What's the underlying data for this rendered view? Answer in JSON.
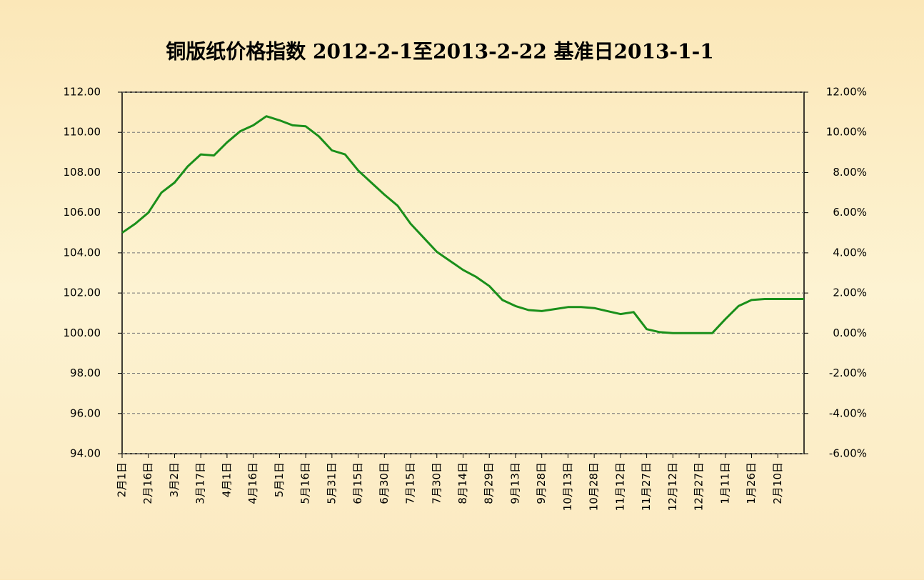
{
  "chart_data": {
    "type": "line",
    "title": "铜版纸价格指数 2012-2-1至2013-2-22 基准日2013-1-1",
    "categories": [
      "2月1日",
      null,
      "2月16日",
      null,
      "3月2日",
      null,
      "3月17日",
      null,
      "4月1日",
      null,
      "4月16日",
      null,
      "5月1日",
      null,
      "5月16日",
      null,
      "5月31日",
      null,
      "6月15日",
      null,
      "6月30日",
      null,
      "7月15日",
      null,
      "7月30日",
      null,
      "8月14日",
      null,
      "8月29日",
      null,
      "9月13日",
      null,
      "9月28日",
      null,
      "10月13日",
      null,
      "10月28日",
      null,
      "11月12日",
      null,
      "11月27日",
      null,
      "12月12日",
      null,
      "12月27日",
      null,
      "1月11日",
      null,
      "1月26日",
      null,
      "2月10日",
      null,
      null
    ],
    "series": [
      {
        "color": "#1a8f1a",
        "values": [
          105.0,
          105.45,
          106.0,
          107.0,
          107.5,
          108.3,
          108.9,
          108.85,
          109.5,
          110.05,
          110.35,
          110.8,
          110.6,
          110.35,
          110.3,
          109.8,
          109.1,
          108.9,
          108.1,
          107.5,
          106.9,
          106.35,
          105.45,
          104.75,
          104.05,
          103.6,
          103.15,
          102.8,
          102.35,
          101.65,
          101.35,
          101.15,
          101.1,
          101.2,
          101.3,
          101.3,
          101.25,
          101.1,
          100.95,
          101.05,
          100.2,
          100.05,
          100.0,
          100.0,
          100.0,
          100.0,
          100.7,
          101.35,
          101.65,
          101.7,
          101.7,
          101.7,
          101.7
        ]
      }
    ],
    "ylim": [
      94,
      112
    ],
    "yticks": [
      {
        "value": 94,
        "label": "94.00"
      },
      {
        "value": 96,
        "label": "96.00"
      },
      {
        "value": 98,
        "label": "98.00"
      },
      {
        "value": 100,
        "label": "100.00"
      },
      {
        "value": 102,
        "label": "102.00"
      },
      {
        "value": 104,
        "label": "104.00"
      },
      {
        "value": 106,
        "label": "106.00"
      },
      {
        "value": 108,
        "label": "108.00"
      },
      {
        "value": 110,
        "label": "110.00"
      },
      {
        "value": 112,
        "label": "112.00"
      }
    ],
    "y2lim": [
      -6,
      12
    ],
    "y2ticks": [
      {
        "value": -6,
        "label": "-6.00%"
      },
      {
        "value": -4,
        "label": "-4.00%"
      },
      {
        "value": -2,
        "label": "-2.00%"
      },
      {
        "value": 0,
        "label": "0.00%"
      },
      {
        "value": 2,
        "label": "2.00%"
      },
      {
        "value": 4,
        "label": "4.00%"
      },
      {
        "value": 6,
        "label": "6.00%"
      },
      {
        "value": 8,
        "label": "8.00%"
      },
      {
        "value": 10,
        "label": "10.00%"
      },
      {
        "value": 12,
        "label": "12.00%"
      }
    ],
    "grid": true
  }
}
